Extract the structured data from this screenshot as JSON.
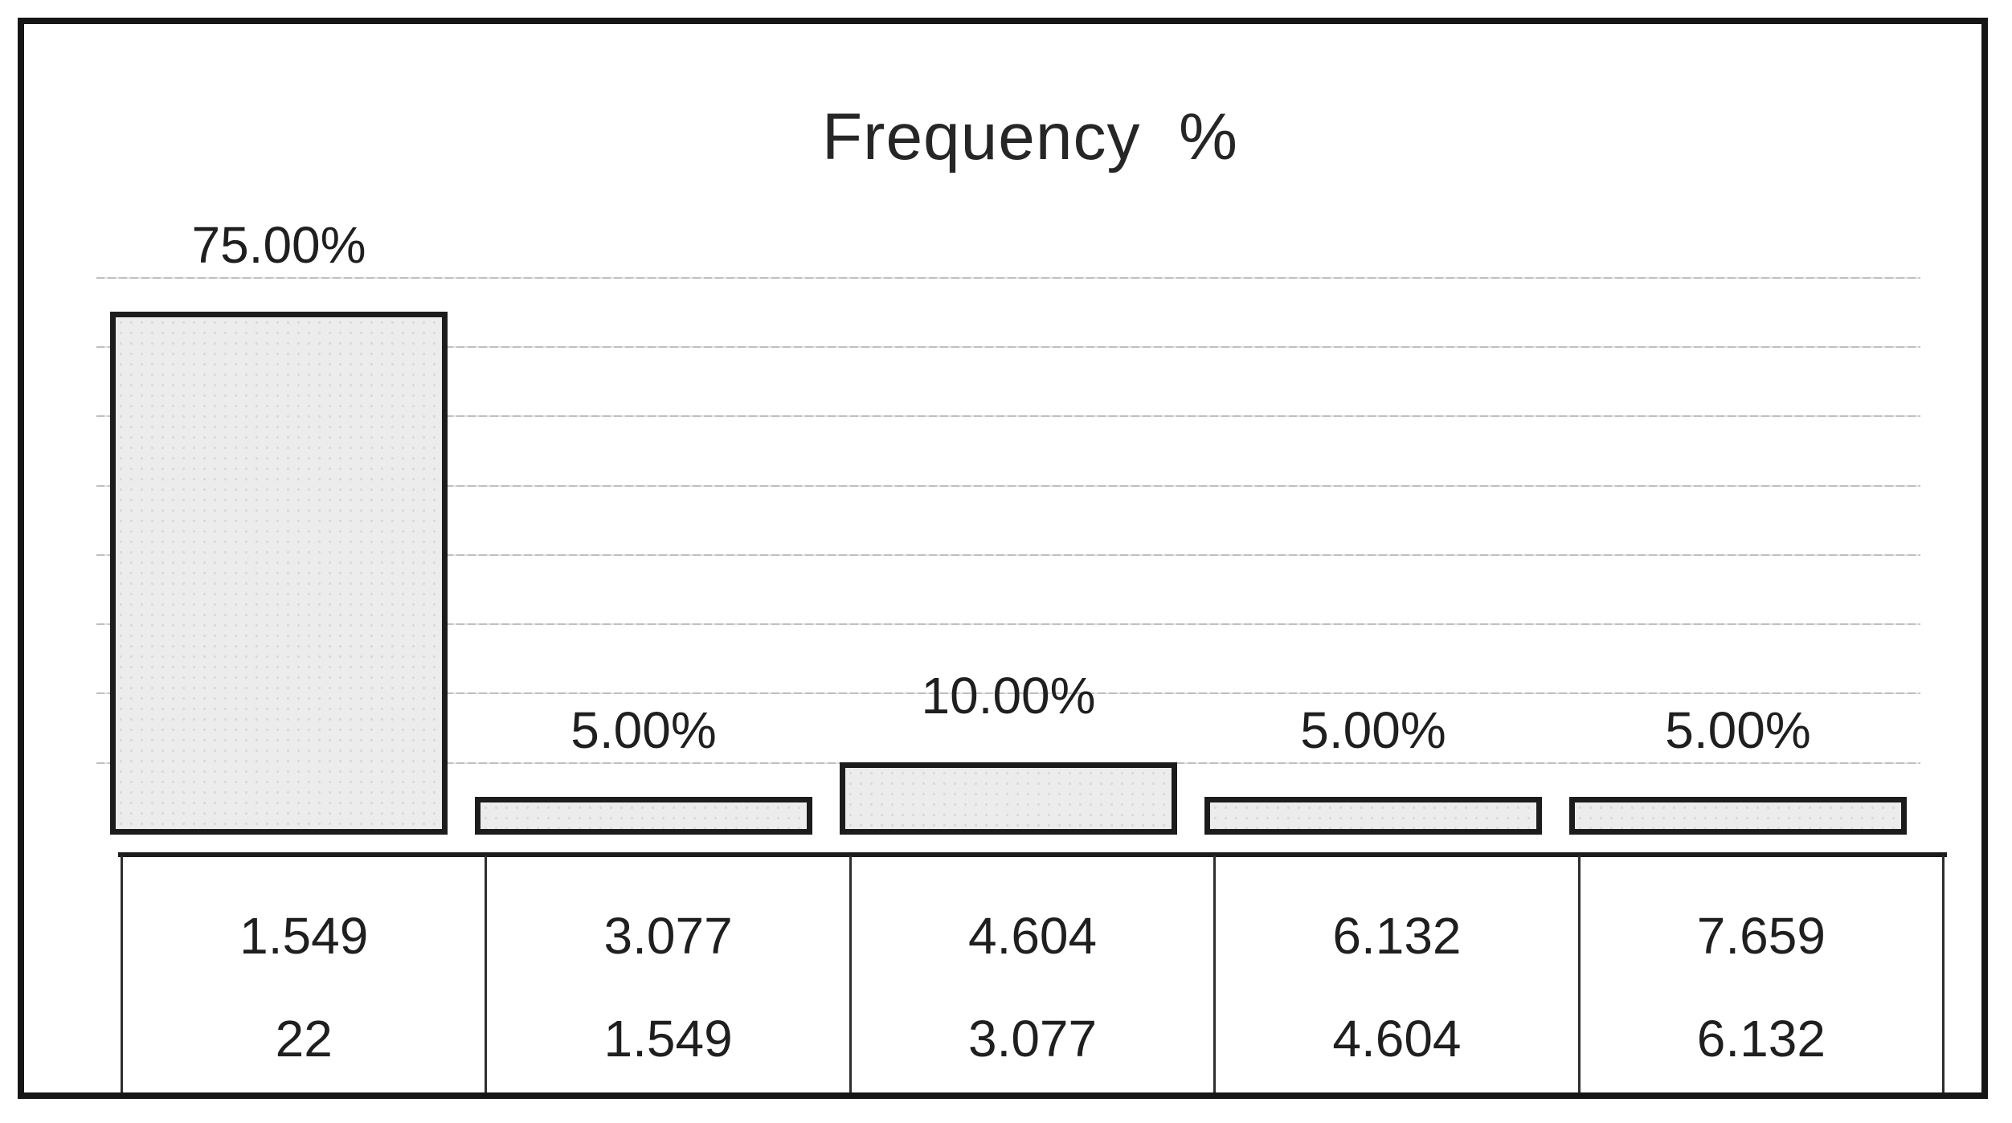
{
  "chart_data": {
    "type": "bar",
    "title": "Frequency  %",
    "series": [
      {
        "name": "Frequency %",
        "values": [
          75,
          5,
          10,
          5,
          5
        ]
      }
    ],
    "value_labels": [
      "75.00%",
      "5.00%",
      "10.00%",
      "5.00%",
      "5.00%"
    ],
    "categories_upper": [
      "1.549",
      "3.077",
      "4.604",
      "6.132",
      "7.659"
    ],
    "categories_lower": [
      "22",
      "1.549",
      "3.077",
      "4.604",
      "6.132"
    ],
    "xlabel": "",
    "ylabel": "",
    "ylim": [
      0,
      80
    ],
    "gridline_step": 10,
    "grid": "on",
    "legend": "none",
    "colors": {
      "bar_fill": "#ececec",
      "bar_dot": "#dadada",
      "bar_border": "#1c1c1c",
      "gridline": "#c3c3c3",
      "axis_line": "#1c1c1c",
      "table_line": "#2e2e2e",
      "text": "#1f1f1f",
      "frame_border": "#161616",
      "background": "#ffffff"
    }
  }
}
